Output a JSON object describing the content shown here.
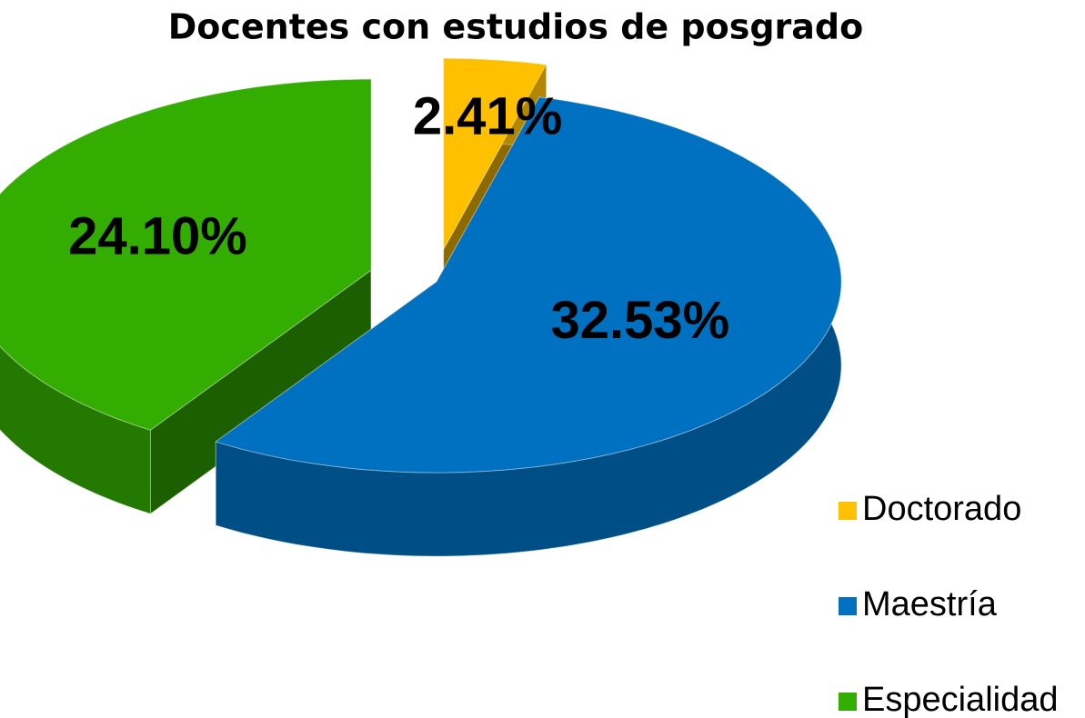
{
  "chart_data": {
    "type": "pie",
    "title": "Docentes con estudios de posgrado",
    "categories": [
      "Doctorado",
      "Maestría",
      "Especialidad"
    ],
    "values": [
      2.41,
      32.53,
      24.1
    ],
    "value_labels": [
      "2.41%",
      "32.53%",
      "24.10%"
    ],
    "colors": [
      "#ffc000",
      "#0070c0",
      "#33ad00"
    ],
    "legend": "bottom-right"
  }
}
